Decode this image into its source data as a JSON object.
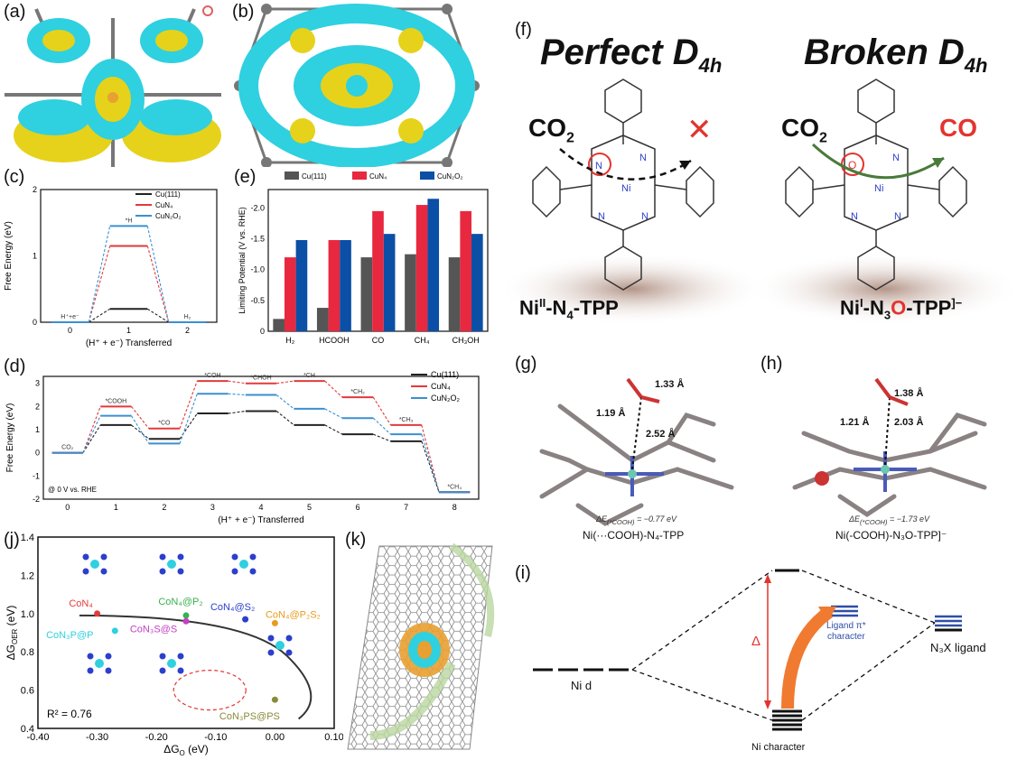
{
  "colors": {
    "cyan": "#2fd0e0",
    "yellow": "#e6d21a",
    "black_series": "#222222",
    "red_series": "#e23a3a",
    "blue_series": "#3a8fd0",
    "bar_gray": "#555555",
    "bar_red": "#e8283f",
    "bar_blue": "#0b4fa6",
    "red_x": "#e3342f",
    "green_arrow": "#4a7a3a"
  },
  "labels": {
    "a": "(a)",
    "b": "(b)",
    "c": "(c)",
    "d": "(d)",
    "e": "(e)",
    "f": "(f)",
    "g": "(g)",
    "h": "(h)",
    "i": "(i)",
    "j": "(j)",
    "k": "(k)"
  },
  "panel_f": {
    "title_left": "Perfect D",
    "title_left_sub": "4h",
    "title_right": "Broken D",
    "title_right_sub": "4h",
    "co2_left": "CO",
    "co2_left_sub": "2",
    "co2_right": "CO",
    "co2_right_sub": "2",
    "product_right": "CO",
    "cross": "✕",
    "bottom_left": "Ni",
    "bottom_left_sup": "II",
    "bottom_left_rest": "-N",
    "bottom_left_sub": "4",
    "bottom_left_end": "-TPP",
    "bottom_right": "Ni",
    "bottom_right_sup": "I",
    "bottom_right_rest": "-N",
    "bottom_right_sub": "3",
    "bottom_right_o": "O",
    "bottom_right_end": "-TPP",
    "bottom_right_charge": "]−"
  },
  "panel_g": {
    "d1": "1.33 Å",
    "d2": "1.19 Å",
    "d3": "2.52 Å",
    "energy": "ΔE",
    "energy_sub": "(*COOH)",
    "energy_val": " = −0.77 eV",
    "caption": "Ni(···COOH)-N₄-TPP"
  },
  "panel_h": {
    "d1": "1.38 Å",
    "d2": "1.21 Å",
    "d3": "2.03 Å",
    "energy": "ΔE",
    "energy_sub": "(*COOH)",
    "energy_val": " = −1.73 eV",
    "caption": "Ni(-COOH)-N₃O-TPP]⁻"
  },
  "panel_i": {
    "ni_d": "Ni d",
    "delta": "Δ",
    "ligand_pi": "Ligand π*",
    "ligand_char": "character",
    "n3x": "N₃X ligand",
    "ni_char": "Ni character"
  },
  "chart_data": [
    {
      "id": "c",
      "type": "line",
      "title": "",
      "xlabel": "(H⁺ + e⁻) Transferred",
      "ylabel": "Free Energy (eV)",
      "xticks": [
        "0",
        "1",
        "2"
      ],
      "yticks": [
        "0",
        "1",
        "2"
      ],
      "ylim": [
        0,
        2
      ],
      "series": [
        {
          "name": "Cu(111)",
          "values": [
            0,
            0.2,
            0
          ]
        },
        {
          "name": "CuN₄",
          "values": [
            0,
            1.15,
            0
          ]
        },
        {
          "name": "CuN₂O₂",
          "values": [
            0,
            1.45,
            0
          ]
        }
      ],
      "step_labels": [
        "H⁺+e⁻",
        "*H",
        "H₂"
      ]
    },
    {
      "id": "e",
      "type": "bar",
      "ylabel": "Limiting Potential (V vs. RHE)",
      "categories": [
        "H₂",
        "HCOOH",
        "CO",
        "CH₄",
        "CH₃OH"
      ],
      "yticks": [
        "0",
        "-0.5",
        "-1.0",
        "-1.5",
        "-2.0"
      ],
      "ylim": [
        0,
        -2.3
      ],
      "series": [
        {
          "name": "Cu(111)",
          "values": [
            -0.2,
            -0.38,
            -1.2,
            -1.25,
            -1.2
          ]
        },
        {
          "name": "CuN₄",
          "values": [
            -1.2,
            -1.48,
            -1.95,
            -2.05,
            -1.95
          ]
        },
        {
          "name": "CuN₂O₂",
          "values": [
            -1.48,
            -1.48,
            -1.58,
            -2.15,
            -1.58
          ]
        }
      ]
    },
    {
      "id": "d",
      "type": "line",
      "xlabel": "(H⁺ + e⁻) Transferred",
      "ylabel": "Free Energy (eV)",
      "note": "@ 0 V vs. RHE",
      "xticks": [
        "0",
        "1",
        "2",
        "3",
        "4",
        "5",
        "6",
        "7",
        "8"
      ],
      "yticks": [
        "-2",
        "-1",
        "0",
        "1",
        "2",
        "3"
      ],
      "ylim": [
        -2,
        3.3
      ],
      "series": [
        {
          "name": "Cu(111)",
          "values": [
            0,
            1.2,
            0.6,
            1.7,
            1.8,
            1.2,
            0.8,
            0.5,
            -1.7
          ]
        },
        {
          "name": "CuN₄",
          "values": [
            0,
            2.0,
            1.05,
            3.1,
            3.0,
            3.1,
            2.4,
            1.2,
            -1.7
          ]
        },
        {
          "name": "CuN₂O₂",
          "values": [
            0,
            1.6,
            0.4,
            2.55,
            2.5,
            1.9,
            1.5,
            0.8,
            -1.7
          ]
        }
      ],
      "step_labels": [
        "CO₂",
        "*COOH",
        "*CO",
        "*COH",
        "*CHOH",
        "*CH",
        "*CH₂",
        "*CH₃",
        "*CH₄"
      ]
    },
    {
      "id": "j",
      "type": "scatter",
      "xlabel": "ΔG",
      "xlabel_sub": "O",
      "xlabel_unit": " (eV)",
      "ylabel": "ΔG",
      "ylabel_sub": "OER",
      "ylabel_unit": " (eV)",
      "xticks": [
        "-0.40",
        "-0.30",
        "-0.20",
        "-0.10",
        "0.00",
        "0.10"
      ],
      "yticks": [
        "0.4",
        "0.6",
        "0.8",
        "1.0",
        "1.2",
        "1.4"
      ],
      "xlim": [
        -0.4,
        0.1
      ],
      "ylim": [
        0.4,
        1.4
      ],
      "r2": "R² = 0.76",
      "points": [
        {
          "label": "CoN₄",
          "x": -0.3,
          "y": 1.0,
          "color": "#e33b3b"
        },
        {
          "label": "CoN₄@P₂",
          "x": -0.15,
          "y": 0.99,
          "color": "#37b24d"
        },
        {
          "label": "CoN₄@S₂",
          "x": -0.05,
          "y": 0.97,
          "color": "#2b3fcc"
        },
        {
          "label": "CoN₄@P₂S₂",
          "x": 0.0,
          "y": 0.95,
          "color": "#e89b1c"
        },
        {
          "label": "CoN₃P@P",
          "x": -0.27,
          "y": 0.91,
          "color": "#2fd0e0"
        },
        {
          "label": "CoN₃S@S",
          "x": -0.15,
          "y": 0.96,
          "color": "#c43fc4"
        },
        {
          "label": "CoN₃PS@PS",
          "x": 0.0,
          "y": 0.55,
          "color": "#8a8a3a"
        }
      ]
    }
  ]
}
